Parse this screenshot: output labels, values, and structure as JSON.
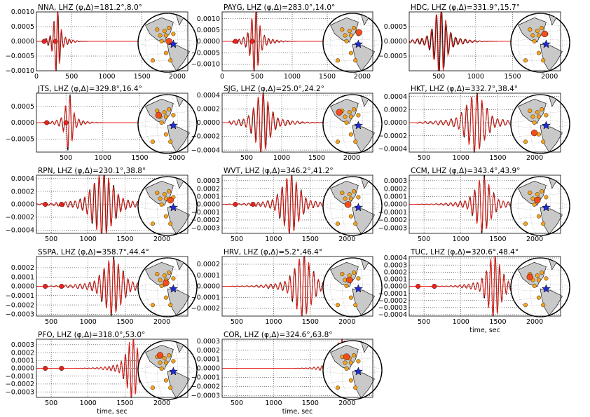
{
  "figure": {
    "xlabel": "time, sec",
    "colors": {
      "data": "#000000",
      "synthetic": "#e8231c",
      "station": "#f5a21b",
      "station_active": "#f24d1a",
      "epicenter": "#1f2bd6",
      "land": "#c9c9c9",
      "ocean": "#ffffff"
    },
    "icons": {
      "epicenter": "star-icon",
      "station": "circle-marker"
    }
  },
  "chart_data": [
    {
      "type": "line",
      "title": "NNA, LHZ (φ,Δ)=181.2°,8.0°",
      "station": "NNA",
      "channel": "LHZ",
      "phi": 181.2,
      "delta": 8.0,
      "xlim": [
        0,
        2150
      ],
      "ylim": [
        -0.001,
        0.001
      ],
      "xticks": [
        0,
        500,
        1000,
        1500,
        2000
      ],
      "yticks": [
        -0.001,
        -0.0005,
        0.0,
        0.0005,
        0.001
      ],
      "xticklabels": [
        "0",
        "500",
        "1000",
        "1500",
        "2000"
      ],
      "yticklabels": [
        "−0.0010",
        "−0.0005",
        "0.0000",
        "0.0005",
        "0.0010"
      ],
      "series": [],
      "markers": [
        110,
        270
      ],
      "signal": {
        "t0": 120,
        "t1": 1500,
        "peak": 290,
        "width": 40,
        "amp": 0.00095,
        "period": 55,
        "skew": 0.4
      },
      "xlabel": ""
    },
    {
      "type": "line",
      "title": "PAYG, LHZ (φ,Δ)=283.0°,14.0°",
      "station": "PAYG",
      "channel": "LHZ",
      "phi": 283.0,
      "delta": 14.0,
      "xlim": [
        0,
        2150
      ],
      "ylim": [
        -0.0013,
        0.0013
      ],
      "xticks": [
        0,
        500,
        1000,
        1500,
        2000
      ],
      "yticks": [
        -0.001,
        -0.0005,
        0.0,
        0.0005,
        0.001
      ],
      "xticklabels": [
        "0",
        "500",
        "1000",
        "1500",
        "2000"
      ],
      "yticklabels": [
        "−0.0010",
        "−0.0005",
        "0.0000",
        "0.0005",
        "0.0010"
      ],
      "series": [],
      "markers": [
        190,
        430
      ],
      "signal": {
        "t0": 150,
        "t1": 1500,
        "peak": 470,
        "width": 55,
        "amp": 0.0012,
        "period": 60,
        "skew": 0.3
      },
      "xlabel": ""
    },
    {
      "type": "line",
      "title": "HDC, LHZ (φ,Δ)=331.9°,15.7°",
      "station": "HDC",
      "channel": "LHZ",
      "phi": 331.9,
      "delta": 15.7,
      "xlim": [
        100,
        2150
      ],
      "ylim": [
        -0.001,
        0.001
      ],
      "xticks": [
        500,
        1000,
        1500,
        2000
      ],
      "yticks": [
        -0.0005,
        0.0,
        0.0005
      ],
      "xticklabels": [
        "500",
        "1000",
        "1500",
        "2000"
      ],
      "yticklabels": [
        "−0.0005",
        "0.0000",
        "0.0005"
      ],
      "series": [],
      "markers": [],
      "signal": {
        "t0": 100,
        "t1": 1800,
        "peak": 520,
        "width": 70,
        "amp": 0.001,
        "period": 65,
        "skew": 0.6
      },
      "xlabel": ""
    },
    {
      "type": "line",
      "title": "JTS, LHZ (φ,Δ)=329.8°,16.4°",
      "station": "JTS",
      "channel": "LHZ",
      "phi": 329.8,
      "delta": 16.4,
      "xlim": [
        100,
        2150
      ],
      "ylim": [
        -0.0009,
        0.0009
      ],
      "xticks": [
        500,
        1000,
        1500,
        2000
      ],
      "yticks": [
        -0.0005,
        0.0,
        0.0005
      ],
      "xticklabels": [
        "500",
        "1000",
        "1500",
        "2000"
      ],
      "yticklabels": [
        "−0.0005",
        "0.0000",
        "0.0005"
      ],
      "series": [],
      "markers": [
        240,
        500
      ],
      "signal": {
        "t0": 180,
        "t1": 1550,
        "peak": 540,
        "width": 45,
        "amp": 0.0007,
        "period": 60,
        "skew": 0.2
      },
      "xlabel": ""
    },
    {
      "type": "line",
      "title": "SJG, LHZ (φ,Δ)=25.0°,24.2°",
      "station": "SJG",
      "channel": "LHZ",
      "phi": 25.0,
      "delta": 24.2,
      "xlim": [
        150,
        2300
      ],
      "ylim": [
        -0.00043,
        0.00043
      ],
      "xticks": [
        500,
        1000,
        1500,
        2000
      ],
      "yticks": [
        -0.0004,
        -0.0002,
        0.0,
        0.0002,
        0.0004
      ],
      "xticklabels": [
        "500",
        "1000",
        "1500",
        "2000"
      ],
      "yticklabels": [
        "−0.0004",
        "−0.0002",
        "0.0000",
        "0.0002",
        "0.0004"
      ],
      "series": [],
      "markers": [],
      "signal": {
        "t0": 250,
        "t1": 1700,
        "peak": 720,
        "width": 90,
        "amp": 0.00038,
        "period": 70,
        "skew": 0.3
      },
      "xlabel": ""
    },
    {
      "type": "line",
      "title": "HKT, LHZ (φ,Δ)=332.7°,38.4°",
      "station": "HKT",
      "channel": "LHZ",
      "phi": 332.7,
      "delta": 38.4,
      "xlim": [
        300,
        2350
      ],
      "ylim": [
        -0.00045,
        0.00045
      ],
      "xticks": [
        500,
        1000,
        1500,
        2000
      ],
      "yticks": [
        -0.0004,
        -0.0002,
        0.0,
        0.0002,
        0.0004
      ],
      "xticklabels": [
        "500",
        "1000",
        "1500",
        "2000"
      ],
      "yticklabels": [
        "−0.0004",
        "−0.0002",
        "0.0000",
        "0.0002",
        "0.0004"
      ],
      "series": [],
      "markers": [],
      "signal": {
        "t0": 400,
        "t1": 1900,
        "peak": 1200,
        "width": 110,
        "amp": 0.00038,
        "period": 70,
        "skew": 0.2
      },
      "xlabel": ""
    },
    {
      "type": "line",
      "title": "RPN, LHZ (φ,Δ)=230.1°,38.8°",
      "station": "RPN",
      "channel": "LHZ",
      "phi": 230.1,
      "delta": 38.8,
      "xlim": [
        300,
        2350
      ],
      "ylim": [
        -0.00045,
        0.00045
      ],
      "xticks": [
        500,
        1000,
        1500,
        2000
      ],
      "yticks": [
        -0.0004,
        -0.0002,
        0.0,
        0.0002,
        0.0004
      ],
      "xticklabels": [
        "500",
        "1000",
        "1500",
        "2000"
      ],
      "yticklabels": [
        "−0.0004",
        "−0.0002",
        "0.0000",
        "0.0002",
        "0.0004"
      ],
      "series": [],
      "markers": [
        420,
        640
      ],
      "signal": {
        "t0": 300,
        "t1": 2000,
        "peak": 1200,
        "width": 120,
        "amp": 0.00042,
        "period": 65,
        "skew": 0.3
      },
      "xlabel": ""
    },
    {
      "type": "line",
      "title": "WVT, LHZ (φ,Δ)=346.2°,41.2°",
      "station": "WVT",
      "channel": "LHZ",
      "phi": 346.2,
      "delta": 41.2,
      "xlim": [
        300,
        2350
      ],
      "ylim": [
        -0.00037,
        0.00037
      ],
      "xticks": [
        500,
        1000,
        1500,
        2000
      ],
      "yticks": [
        -0.0003,
        -0.0002,
        -0.0001,
        0.0,
        0.0001,
        0.0002,
        0.0003
      ],
      "xticklabels": [
        "500",
        "1000",
        "1500",
        "2000"
      ],
      "yticklabels": [
        "−0.0003",
        "−0.0002",
        "−0.0001",
        "0.0000",
        "0.0001",
        "0.0002",
        "0.0003"
      ],
      "series": [],
      "markers": [
        480,
        720
      ],
      "signal": {
        "t0": 350,
        "t1": 2000,
        "peak": 1230,
        "width": 100,
        "amp": 0.00032,
        "period": 65,
        "skew": 0.2
      },
      "xlabel": ""
    },
    {
      "type": "line",
      "title": "CCM, LHZ (φ,Δ)=343.4°,43.9°",
      "station": "CCM",
      "channel": "LHZ",
      "phi": 343.4,
      "delta": 43.9,
      "xlim": [
        300,
        2350
      ],
      "ylim": [
        -0.00037,
        0.00037
      ],
      "xticks": [
        500,
        1000,
        1500,
        2000
      ],
      "yticks": [
        -0.0003,
        -0.0002,
        -0.0001,
        0.0,
        0.0001,
        0.0002,
        0.0003
      ],
      "xticklabels": [
        "500",
        "1000",
        "1500",
        "2000"
      ],
      "yticklabels": [
        "−0.0003",
        "−0.0002",
        "−0.0001",
        "0.0000",
        "0.0001",
        "0.0002",
        "0.0003"
      ],
      "series": [],
      "markers": [],
      "signal": {
        "t0": 400,
        "t1": 2000,
        "peak": 1300,
        "width": 90,
        "amp": 0.0003,
        "period": 65,
        "skew": 0.2
      },
      "xlabel": ""
    },
    {
      "type": "line",
      "title": "SSPA, LHZ (φ,Δ)=358.7°,44.4°",
      "station": "SSPA",
      "channel": "LHZ",
      "phi": 358.7,
      "delta": 44.4,
      "xlim": [
        300,
        2350
      ],
      "ylim": [
        -0.00032,
        0.00032
      ],
      "xticks": [
        500,
        1000,
        1500,
        2000
      ],
      "yticks": [
        -0.0003,
        -0.0002,
        -0.0001,
        0.0,
        0.0001,
        0.0002
      ],
      "xticklabels": [
        "500",
        "1000",
        "1500",
        "2000"
      ],
      "yticklabels": [
        "−0.0003",
        "−0.0002",
        "−0.0001",
        "0.0000",
        "0.0001",
        "0.0002"
      ],
      "series": [],
      "markers": [
        420,
        640
      ],
      "signal": {
        "t0": 400,
        "t1": 2000,
        "peak": 1330,
        "width": 110,
        "amp": 0.00026,
        "period": 65,
        "skew": 0.2
      },
      "xlabel": ""
    },
    {
      "type": "line",
      "title": "HRV, LHZ (φ,Δ)=5.2°,46.4°",
      "station": "HRV",
      "channel": "LHZ",
      "phi": 5.2,
      "delta": 46.4,
      "xlim": [
        300,
        2350
      ],
      "ylim": [
        -0.00027,
        0.00027
      ],
      "xticks": [
        500,
        1000,
        1500,
        2000
      ],
      "yticks": [
        -0.0002,
        -0.0001,
        0.0,
        0.0001,
        0.0002
      ],
      "xticklabels": [
        "500",
        "1000",
        "1500",
        "2000"
      ],
      "yticklabels": [
        "−0.0002",
        "−0.0001",
        "0.0000",
        "0.0001",
        "0.0002"
      ],
      "series": [],
      "markers": [],
      "signal": {
        "t0": 400,
        "t1": 2000,
        "peak": 1400,
        "width": 100,
        "amp": 0.00024,
        "period": 65,
        "skew": 0.2
      },
      "xlabel": ""
    },
    {
      "type": "line",
      "title": "TUC, LHZ (φ,Δ)=320.6°,48.4°",
      "station": "TUC",
      "channel": "LHZ",
      "phi": 320.6,
      "delta": 48.4,
      "xlim": [
        300,
        2350
      ],
      "ylim": [
        -0.00042,
        0.00042
      ],
      "xticks": [
        500,
        1000,
        1500,
        2000
      ],
      "yticks": [
        -0.0004,
        -0.0003,
        -0.0002,
        -0.0001,
        0.0,
        0.0001,
        0.0002,
        0.0003,
        0.0004
      ],
      "xticklabels": [
        "500",
        "1000",
        "1500",
        "2000"
      ],
      "yticklabels": [
        "−0.0004",
        "−0.0003",
        "−0.0002",
        "−0.0001",
        "0.0000",
        "0.0001",
        "0.0002",
        "0.0003",
        "0.0004"
      ],
      "series": [],
      "markers": [
        420,
        640
      ],
      "signal": {
        "t0": 400,
        "t1": 2000,
        "peak": 1450,
        "width": 80,
        "amp": 0.00038,
        "period": 60,
        "skew": 0.1
      },
      "xlabel": "time, sec"
    },
    {
      "type": "line",
      "title": "PFO, LHZ (φ,Δ)=318.0°,53.0°",
      "station": "PFO",
      "channel": "LHZ",
      "phi": 318.0,
      "delta": 53.0,
      "xlim": [
        300,
        2350
      ],
      "ylim": [
        -0.00037,
        0.00037
      ],
      "xticks": [
        500,
        1000,
        1500,
        2000
      ],
      "yticks": [
        -0.0003,
        -0.0002,
        -0.0001,
        0.0,
        0.0001,
        0.0002,
        0.0003
      ],
      "xticklabels": [
        "500",
        "1000",
        "1500",
        "2000"
      ],
      "yticklabels": [
        "−0.0003",
        "−0.0002",
        "−0.0001",
        "0.0000",
        "0.0001",
        "0.0002",
        "0.0003"
      ],
      "series": [],
      "markers": [
        420,
        640
      ],
      "signal": {
        "t0": 400,
        "t1": 1900,
        "peak": 1600,
        "width": 70,
        "amp": 0.00033,
        "period": 55,
        "skew": 0.1
      },
      "xlabel": "time, sec"
    },
    {
      "type": "line",
      "title": "COR, LHZ (φ,Δ)=324.6°,63.8°",
      "station": "COR",
      "channel": "LHZ",
      "phi": 324.6,
      "delta": 63.8,
      "xlim": [
        300,
        2350
      ],
      "ylim": [
        -0.00032,
        0.00032
      ],
      "xticks": [
        500,
        1000,
        1500,
        2000
      ],
      "yticks": [
        -0.0003,
        -0.0002,
        -0.0001,
        0.0,
        0.0001,
        0.0002,
        0.0003
      ],
      "xticklabels": [
        "500",
        "1000",
        "1500",
        "2000"
      ],
      "yticklabels": [
        "−0.0003",
        "−0.0002",
        "−0.0001",
        "0.0000",
        "0.0001",
        "0.0002",
        "0.0003"
      ],
      "series": [],
      "markers": [],
      "signal": {
        "t0": 400,
        "t1": 2100,
        "peak": 1920,
        "width": 60,
        "amp": 0.0003,
        "period": 55,
        "skew": 0.1
      },
      "xlabel": "time, sec"
    }
  ]
}
